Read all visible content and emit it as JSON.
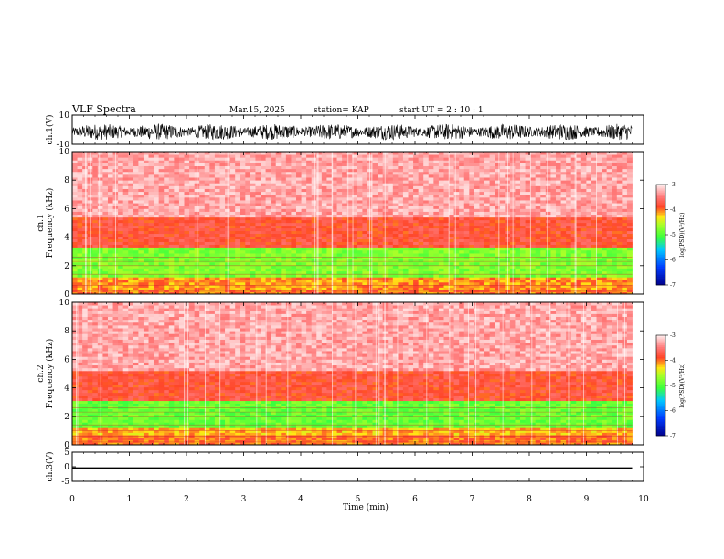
{
  "header": {
    "title": "VLF Spectra",
    "date": "Mar.15, 2025",
    "station": "station= KAP",
    "start_ut": "start  UT =   2 : 10 : 1"
  },
  "colors": {
    "background": "#ffffff",
    "waveform": "#000000",
    "spectrogram_base": "#ff9a9a",
    "spectrogram_strong": "#ff2a2a",
    "band_yellow": "#ffd21a",
    "band_green": "#9bff33"
  },
  "chart_data": [
    {
      "type": "line",
      "panel": "ch1-waveform",
      "ylabel": "ch.1(V)",
      "ylim": [
        -10,
        10
      ],
      "yticks": [
        "10",
        "-10"
      ],
      "xlim": [
        0,
        10
      ],
      "description_values": {
        "approx_amplitude_range": [
          -7,
          4
        ],
        "data_end_min": 9.8
      }
    },
    {
      "type": "heatmap",
      "panel": "ch1-spectrogram",
      "ylabel": "ch.1\nFrequency  (kHz)",
      "ylim": [
        0,
        10
      ],
      "yticks": [
        "0",
        "2",
        "4",
        "6",
        "8",
        "10"
      ],
      "xlim": [
        0,
        10
      ],
      "data_end_min": 9.8,
      "bands_khz": [
        {
          "from": 0.0,
          "to": 0.3,
          "level": -4.0
        },
        {
          "from": 0.3,
          "to": 1.2,
          "level": -4.1
        },
        {
          "from": 1.2,
          "to": 3.3,
          "level": -4.8
        },
        {
          "from": 3.3,
          "to": 5.4,
          "level": -3.8
        },
        {
          "from": 5.4,
          "to": 10.0,
          "level": -3.3
        }
      ],
      "colorbar": {
        "label": "log(PSD)(V²/Hz)",
        "range": [
          -7,
          -3
        ],
        "ticks": [
          "-3",
          "-4",
          "-5",
          "-6",
          "-7"
        ]
      }
    },
    {
      "type": "heatmap",
      "panel": "ch2-spectrogram",
      "ylabel": "ch.2\nFrequency  (kHz)",
      "ylim": [
        0,
        10
      ],
      "yticks": [
        "0",
        "2",
        "4",
        "6",
        "8",
        "10"
      ],
      "xlim": [
        0,
        10
      ],
      "data_end_min": 9.8,
      "bands_khz": [
        {
          "from": 0.0,
          "to": 0.7,
          "level": -4.0
        },
        {
          "from": 0.7,
          "to": 1.2,
          "level": -4.2
        },
        {
          "from": 1.2,
          "to": 3.1,
          "level": -4.9
        },
        {
          "from": 3.1,
          "to": 5.2,
          "level": -3.8
        },
        {
          "from": 5.2,
          "to": 10.0,
          "level": -3.3
        }
      ],
      "colorbar": {
        "label": "log(PSD)(V²/Hz)",
        "range": [
          -7,
          -3
        ],
        "ticks": [
          "-3",
          "-4",
          "-5",
          "-6",
          "-7"
        ]
      }
    },
    {
      "type": "line",
      "panel": "ch3-waveform",
      "ylabel": "ch.3(V)",
      "ylim": [
        -5,
        5
      ],
      "yticks": [
        "5",
        "0",
        "-5"
      ],
      "xlim": [
        0,
        10
      ],
      "description_values": {
        "approx_level": -0.5,
        "approx_amplitude": 0.6,
        "data_end_min": 9.8
      }
    }
  ],
  "xaxis": {
    "label": "Time  (min)",
    "ticks": [
      "0",
      "1",
      "2",
      "3",
      "4",
      "5",
      "6",
      "7",
      "8",
      "9",
      "10"
    ]
  }
}
